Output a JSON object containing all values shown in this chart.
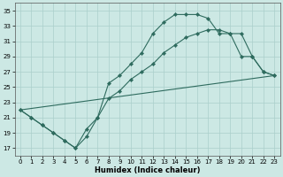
{
  "xlabel": "Humidex (Indice chaleur)",
  "bg_color": "#cce8e4",
  "grid_color": "#aacfcb",
  "line_color": "#2e6b5e",
  "xlim": [
    -0.5,
    23.5
  ],
  "ylim": [
    16,
    36
  ],
  "xticks": [
    0,
    1,
    2,
    3,
    4,
    5,
    6,
    7,
    8,
    9,
    10,
    11,
    12,
    13,
    14,
    15,
    16,
    17,
    18,
    19,
    20,
    21,
    22,
    23
  ],
  "yticks": [
    17,
    19,
    21,
    23,
    25,
    27,
    29,
    31,
    33,
    35
  ],
  "line1_x": [
    0,
    1,
    2,
    3,
    4,
    5,
    6,
    7,
    8,
    9,
    10,
    11,
    12,
    13,
    14,
    15,
    16,
    17,
    18,
    19,
    20,
    21,
    22,
    23
  ],
  "line1_y": [
    22,
    21,
    20,
    19,
    18,
    17,
    18.5,
    21,
    25.5,
    26.5,
    28,
    29.5,
    32,
    33.5,
    34.5,
    34.5,
    34.5,
    34,
    32,
    32,
    29,
    29,
    27,
    26.5
  ],
  "line2_x": [
    0,
    1,
    2,
    3,
    4,
    5,
    6,
    7,
    8,
    9,
    10,
    11,
    12,
    13,
    14,
    15,
    16,
    17,
    18,
    19,
    20,
    21,
    22,
    23
  ],
  "line2_y": [
    22,
    21,
    20,
    19,
    18,
    17,
    19.5,
    21,
    23.5,
    24.5,
    26,
    27,
    28,
    29.5,
    30.5,
    31.5,
    32,
    32.5,
    32.5,
    32,
    32,
    29,
    27,
    26.5
  ],
  "line3_x": [
    0,
    23
  ],
  "line3_y": [
    22,
    26.5
  ]
}
